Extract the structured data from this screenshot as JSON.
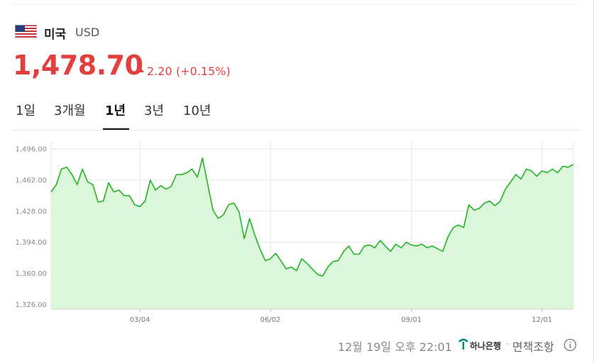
{
  "header": {
    "country": "미국",
    "currency": "USD",
    "price": "1,478.70",
    "change": "2.20",
    "change_pct": "(+0.15%)"
  },
  "tabs": [
    "1일",
    "3개월",
    "1년",
    "3년",
    "10년"
  ],
  "active_tab": 2,
  "footer": {
    "timestamp": "12월 19일 오후 22:01",
    "bank": "하나은행",
    "disclaimer": "면책조항"
  },
  "chart_data": {
    "type": "area",
    "categories": [
      null,
      null,
      null,
      null,
      null,
      null,
      null,
      null,
      null,
      null,
      null,
      null,
      null,
      null,
      null,
      null,
      null,
      "03/04",
      null,
      null,
      null,
      null,
      null,
      null,
      null,
      null,
      null,
      null,
      null,
      null,
      null,
      null,
      null,
      null,
      null,
      null,
      null,
      null,
      null,
      null,
      null,
      null,
      "06/02",
      null,
      null,
      null,
      null,
      null,
      null,
      null,
      null,
      null,
      null,
      null,
      null,
      null,
      null,
      null,
      null,
      null,
      null,
      null,
      null,
      null,
      null,
      null,
      null,
      null,
      null,
      "09/01",
      null,
      null,
      null,
      null,
      null,
      null,
      null,
      null,
      null,
      null,
      null,
      null,
      null,
      null,
      null,
      null,
      null,
      null,
      null,
      null,
      null,
      null,
      null,
      null,
      "12/01",
      null,
      null,
      null,
      null,
      null,
      null
    ],
    "values": [
      1449,
      1457,
      1474,
      1476,
      1468,
      1457,
      1474,
      1460,
      1457,
      1438,
      1439,
      1459,
      1449,
      1451,
      1445,
      1445,
      1435,
      1433,
      1439,
      1462,
      1451,
      1456,
      1452,
      1455,
      1468,
      1468,
      1470,
      1474,
      1465,
      1486,
      1457,
      1429,
      1420,
      1424,
      1435,
      1437,
      1427,
      1398,
      1420,
      1402,
      1387,
      1374,
      1376,
      1382,
      1374,
      1365,
      1367,
      1363,
      1376,
      1371,
      1365,
      1359,
      1357,
      1367,
      1373,
      1374,
      1384,
      1390,
      1381,
      1381,
      1390,
      1391,
      1388,
      1396,
      1390,
      1384,
      1392,
      1388,
      1394,
      1391,
      1390,
      1392,
      1388,
      1390,
      1387,
      1384,
      1400,
      1410,
      1413,
      1410,
      1435,
      1429,
      1431,
      1437,
      1439,
      1434,
      1439,
      1452,
      1460,
      1468,
      1463,
      1474,
      1472,
      1466,
      1472,
      1470,
      1474,
      1470,
      1477,
      1476,
      1479
    ],
    "color": "#22b522",
    "fill": "#dbf6da",
    "ylim": [
      1321,
      1496
    ],
    "yticks": [
      {
        "value": 1326,
        "label": "1,326.00"
      },
      {
        "value": 1360,
        "label": "1,360.00"
      },
      {
        "value": 1394,
        "label": "1,394.00"
      },
      {
        "value": 1428,
        "label": "1,428.00"
      },
      {
        "value": 1462,
        "label": "1,462.00"
      },
      {
        "value": 1496,
        "label": "1,496.00"
      }
    ],
    "grid": true
  }
}
